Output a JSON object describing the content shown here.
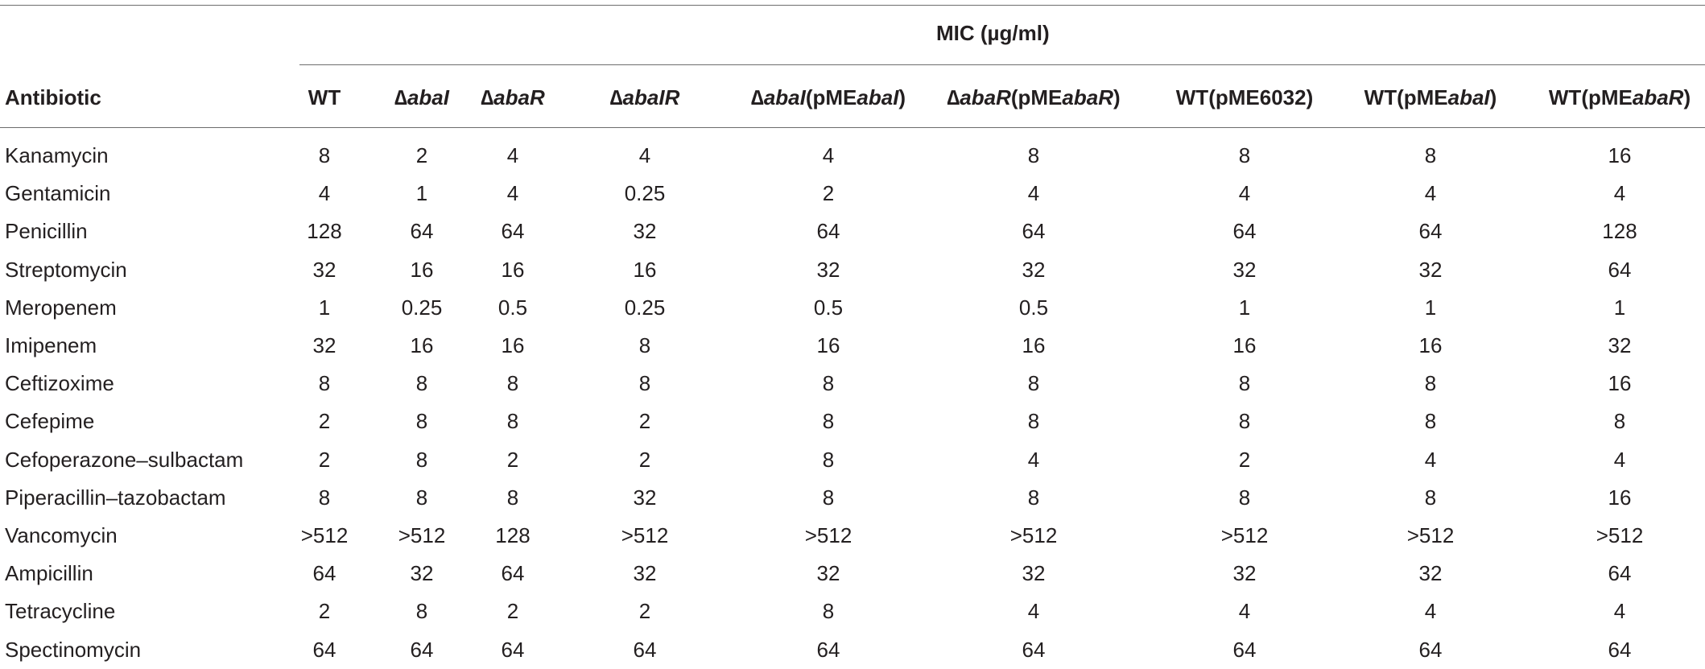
{
  "table": {
    "group_header": "MIC (µg/ml)",
    "first_column_header": "Antibiotic",
    "columns": [
      {
        "parts": [
          {
            "t": "WT",
            "i": false
          }
        ]
      },
      {
        "parts": [
          {
            "t": "∆",
            "i": false
          },
          {
            "t": "abaI",
            "i": true
          }
        ]
      },
      {
        "parts": [
          {
            "t": "∆",
            "i": false
          },
          {
            "t": "abaR",
            "i": true
          }
        ]
      },
      {
        "parts": [
          {
            "t": "∆",
            "i": false
          },
          {
            "t": "abaIR",
            "i": true
          }
        ]
      },
      {
        "parts": [
          {
            "t": "∆",
            "i": false
          },
          {
            "t": "abaI",
            "i": true
          },
          {
            "t": "(pME",
            "i": false
          },
          {
            "t": "abaI",
            "i": true
          },
          {
            "t": ")",
            "i": false
          }
        ]
      },
      {
        "parts": [
          {
            "t": "∆",
            "i": false
          },
          {
            "t": "abaR",
            "i": true
          },
          {
            "t": "(pME",
            "i": false
          },
          {
            "t": "abaR",
            "i": true
          },
          {
            "t": ")",
            "i": false
          }
        ]
      },
      {
        "parts": [
          {
            "t": "WT(pME6032)",
            "i": false
          }
        ]
      },
      {
        "parts": [
          {
            "t": "WT(pME",
            "i": false
          },
          {
            "t": "abaI",
            "i": true
          },
          {
            "t": ")",
            "i": false
          }
        ]
      },
      {
        "parts": [
          {
            "t": "WT(pME",
            "i": false
          },
          {
            "t": "abaR",
            "i": true
          },
          {
            "t": ")",
            "i": false
          }
        ]
      }
    ],
    "rows": [
      {
        "name": "Kanamycin",
        "values": [
          "8",
          "2",
          "4",
          "4",
          "4",
          "8",
          "8",
          "8",
          "16"
        ]
      },
      {
        "name": "Gentamicin",
        "values": [
          "4",
          "1",
          "4",
          "0.25",
          "2",
          "4",
          "4",
          "4",
          "4"
        ]
      },
      {
        "name": "Penicillin",
        "values": [
          "128",
          "64",
          "64",
          "32",
          "64",
          "64",
          "64",
          "64",
          "128"
        ]
      },
      {
        "name": "Streptomycin",
        "values": [
          "32",
          "16",
          "16",
          "16",
          "32",
          "32",
          "32",
          "32",
          "64"
        ]
      },
      {
        "name": "Meropenem",
        "values": [
          "1",
          "0.25",
          "0.5",
          "0.25",
          "0.5",
          "0.5",
          "1",
          "1",
          "1"
        ]
      },
      {
        "name": "Imipenem",
        "values": [
          "32",
          "16",
          "16",
          "8",
          "16",
          "16",
          "16",
          "16",
          "32"
        ]
      },
      {
        "name": "Ceftizoxime",
        "values": [
          "8",
          "8",
          "8",
          "8",
          "8",
          "8",
          "8",
          "8",
          "16"
        ]
      },
      {
        "name": "Cefepime",
        "values": [
          "2",
          "8",
          "8",
          "2",
          "8",
          "8",
          "8",
          "8",
          "8"
        ]
      },
      {
        "name": "Cefoperazone–sulbactam",
        "values": [
          "2",
          "8",
          "2",
          "2",
          "8",
          "4",
          "2",
          "4",
          "4"
        ]
      },
      {
        "name": "Piperacillin–tazobactam",
        "values": [
          "8",
          "8",
          "8",
          "32",
          "8",
          "8",
          "8",
          "8",
          "16"
        ]
      },
      {
        "name": "Vancomycin",
        "values": [
          ">512",
          ">512",
          "128",
          ">512",
          ">512",
          ">512",
          ">512",
          ">512",
          ">512"
        ]
      },
      {
        "name": "Ampicillin",
        "values": [
          "64",
          "32",
          "64",
          "32",
          "32",
          "32",
          "32",
          "32",
          "64"
        ]
      },
      {
        "name": "Tetracycline",
        "values": [
          "2",
          "8",
          "2",
          "2",
          "8",
          "4",
          "4",
          "4",
          "4"
        ]
      },
      {
        "name": "Spectinomycin",
        "values": [
          "64",
          "64",
          "64",
          "64",
          "64",
          "64",
          "64",
          "64",
          "64"
        ]
      }
    ]
  }
}
